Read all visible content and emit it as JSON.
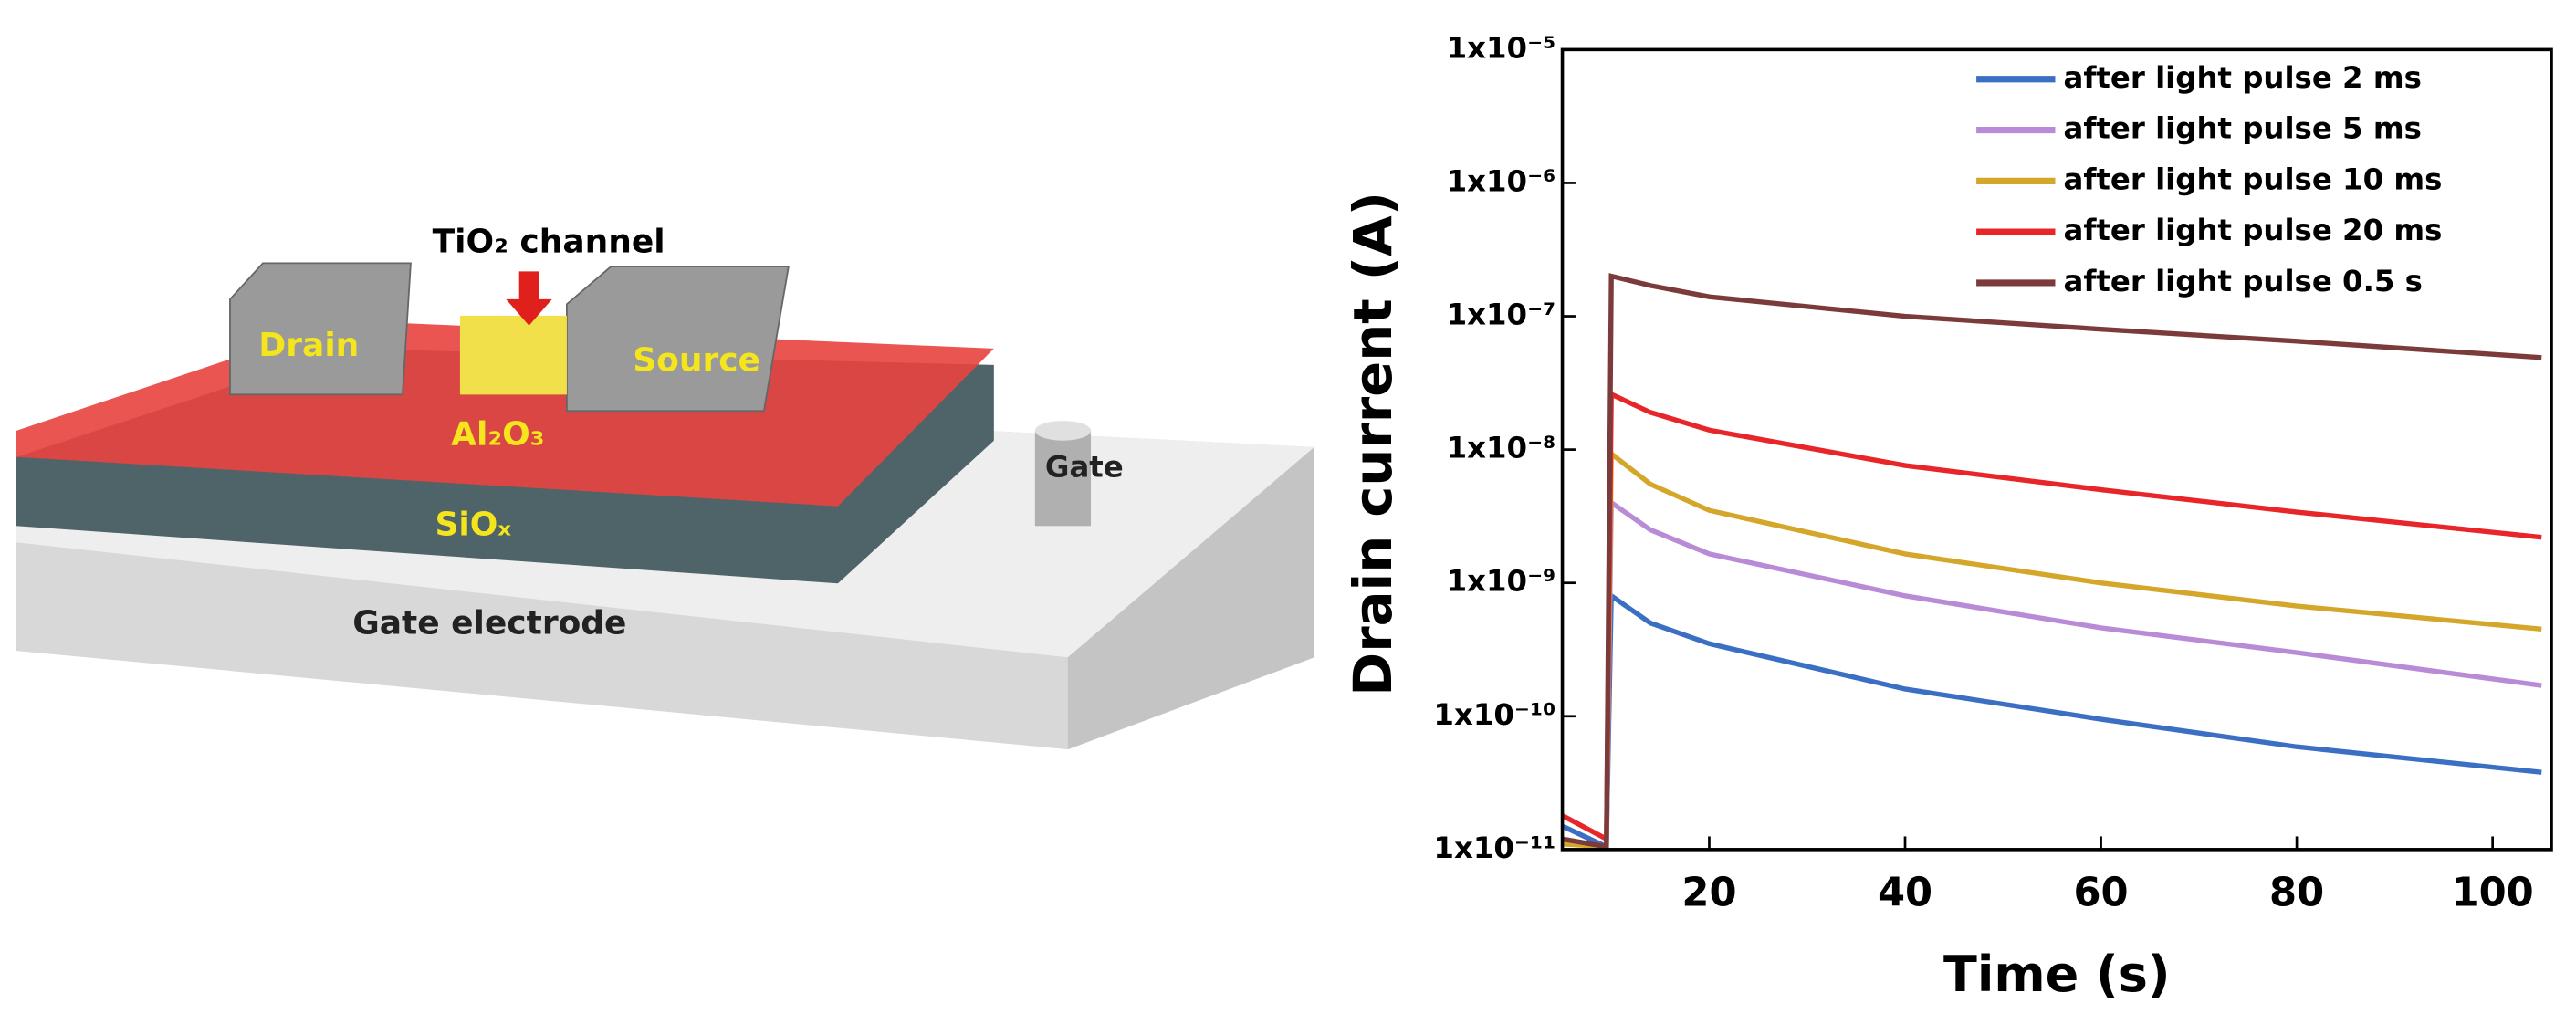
{
  "diagram": {
    "channel_label": "TiO₂ channel",
    "drain_label": "Drain",
    "source_label": "Source",
    "oxide_label": "Al₂O₃",
    "sio_label": "SiOₓ",
    "gate_label": "Gate",
    "gate_electrode_label": "Gate electrode"
  },
  "chart_data": {
    "type": "line",
    "x_label": "Time (s)",
    "y_label": "Drain current (A)",
    "log_y": true,
    "x": [
      5,
      9.5,
      10,
      14,
      20,
      40,
      60,
      80,
      105
    ],
    "series": [
      {
        "name": "after light pulse 2 ms",
        "color": "#3a6fc4",
        "values": [
          1.5e-11,
          1.05e-11,
          8e-10,
          5e-10,
          3.5e-10,
          1.6e-10,
          9.5e-11,
          5.9e-11,
          3.8e-11
        ]
      },
      {
        "name": "after light pulse 5 ms",
        "color": "#b98bd6",
        "values": [
          1.2e-11,
          1.05e-11,
          4e-09,
          2.5e-09,
          1.65e-09,
          8e-10,
          4.6e-10,
          3e-10,
          1.7e-10
        ]
      },
      {
        "name": "after light pulse 10 ms",
        "color": "#d4a62a",
        "values": [
          1.1e-11,
          1.05e-11,
          9.3e-09,
          5.5e-09,
          3.5e-09,
          1.65e-09,
          1e-09,
          6.7e-10,
          4.5e-10
        ]
      },
      {
        "name": "after light pulse 20 ms",
        "color": "#e8262a",
        "values": [
          1.8e-11,
          1.2e-11,
          2.6e-08,
          1.9e-08,
          1.4e-08,
          7.6e-09,
          5e-09,
          3.4e-09,
          2.2e-09
        ]
      },
      {
        "name": "after light pulse 0.5 s",
        "color": "#7b3b3b",
        "values": [
          1.2e-11,
          1.05e-11,
          2e-07,
          1.7e-07,
          1.4e-07,
          1e-07,
          8e-08,
          6.5e-08,
          4.9e-08
        ]
      }
    ],
    "xlim": [
      5,
      106
    ],
    "xticks": [
      20,
      40,
      60,
      80,
      100
    ],
    "ylim": [
      1e-11,
      1e-05
    ],
    "yticks": [
      {
        "value": 1e-11,
        "label": "1x10⁻¹¹"
      },
      {
        "value": 1e-10,
        "label": "1x10⁻¹⁰"
      },
      {
        "value": 1e-09,
        "label": "1x10⁻⁹"
      },
      {
        "value": 1e-08,
        "label": "1x10⁻⁸"
      },
      {
        "value": 1e-07,
        "label": "1x10⁻⁷"
      },
      {
        "value": 1e-06,
        "label": "1x10⁻⁶"
      },
      {
        "value": 1e-05,
        "label": "1x10⁻⁵"
      }
    ],
    "legend_position": "upper right"
  }
}
